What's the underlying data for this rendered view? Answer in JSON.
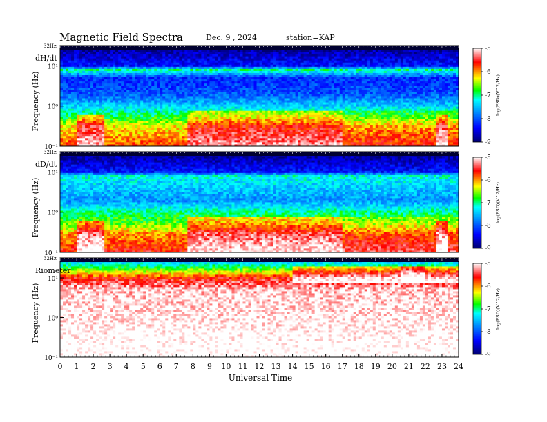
{
  "header": {
    "title": "Magnetic  Field  Spectra",
    "date": "Dec. 9  , 2024",
    "station": "station=KAP"
  },
  "chart_data": [
    {
      "type": "heatmap",
      "panel_label": "dH/dt",
      "ylabel": "Frequency  (Hz)",
      "top_label": "32Hz",
      "ytick_labels": [
        "10¹",
        "10⁰",
        "10⁻¹"
      ],
      "yscale": "log",
      "ylim": [
        0.1,
        32
      ],
      "xlim": [
        0,
        24
      ],
      "colorbar": {
        "label": "log(PSD)(V^2/Hz)",
        "ticks": [
          "-5",
          "-6",
          "-7",
          "-8",
          "-9"
        ],
        "range": [
          -9,
          -5
        ]
      },
      "description_rows": [
        {
          "freq_hz": 32,
          "log_psd": -8.9
        },
        {
          "freq_hz": 10,
          "log_psd": -8.3
        },
        {
          "freq_hz": 8,
          "log_psd": -7.0
        },
        {
          "freq_hz": 5,
          "log_psd": -8.2
        },
        {
          "freq_hz": 2,
          "log_psd": -8.0
        },
        {
          "freq_hz": 1,
          "log_psd": -7.4
        },
        {
          "freq_hz": 0.5,
          "log_psd": -6.8
        },
        {
          "freq_hz": 0.3,
          "log_psd": -6.2
        },
        {
          "freq_hz": 0.1,
          "log_psd": -5.8
        }
      ]
    },
    {
      "type": "heatmap",
      "panel_label": "dD/dt",
      "ylabel": "Frequency  (Hz)",
      "top_label": "32Hz",
      "ytick_labels": [
        "10¹",
        "10⁰",
        "10⁻¹"
      ],
      "yscale": "log",
      "ylim": [
        0.1,
        32
      ],
      "xlim": [
        0,
        24
      ],
      "colorbar": {
        "label": "log(PSD)(V^2/Hz)",
        "ticks": [
          "-5",
          "-6",
          "-7",
          "-8",
          "-9"
        ],
        "range": [
          -9,
          -5
        ]
      },
      "description_rows": [
        {
          "freq_hz": 32,
          "log_psd": -8.9
        },
        {
          "freq_hz": 10,
          "log_psd": -8.3
        },
        {
          "freq_hz": 8,
          "log_psd": -7.2
        },
        {
          "freq_hz": 2,
          "log_psd": -7.7
        },
        {
          "freq_hz": 1,
          "log_psd": -7.0
        },
        {
          "freq_hz": 0.5,
          "log_psd": -6.6
        },
        {
          "freq_hz": 0.3,
          "log_psd": -6.0
        },
        {
          "freq_hz": 0.1,
          "log_psd": -5.6
        }
      ]
    },
    {
      "type": "heatmap",
      "panel_label": "Riometer",
      "ylabel": "Frequency  (Hz)",
      "top_label": "32Hz",
      "ytick_labels": [
        "10¹",
        "10⁰",
        "10⁻¹"
      ],
      "yscale": "log",
      "ylim": [
        0.1,
        32
      ],
      "xlim": [
        0,
        24
      ],
      "colorbar": {
        "label": "log(PSD)(V^2/Hz)",
        "ticks": [
          "-5",
          "-6",
          "-7",
          "-8",
          "-9"
        ],
        "range": [
          -9,
          -5
        ]
      },
      "description_rows": [
        {
          "freq_hz": 32,
          "log_psd": -7.8
        },
        {
          "freq_hz": 20,
          "log_psd": -7.0
        },
        {
          "freq_hz": 14,
          "log_psd": -6.3
        },
        {
          "freq_hz": 10,
          "log_psd": -5.6
        },
        {
          "freq_hz": 5,
          "log_psd": -5.1
        },
        {
          "freq_hz": 0.1,
          "log_psd": -4.8
        }
      ]
    }
  ],
  "xaxis": {
    "label": "Universal  Time",
    "ticks": [
      0,
      1,
      2,
      3,
      4,
      5,
      6,
      7,
      8,
      9,
      10,
      11,
      12,
      13,
      14,
      15,
      16,
      17,
      18,
      19,
      20,
      21,
      22,
      23,
      24
    ]
  },
  "colors": {
    "colormap": [
      "#000080",
      "#0000ff",
      "#0080ff",
      "#00ffff",
      "#00ff00",
      "#ffff00",
      "#ff0000",
      "#ffffff"
    ]
  }
}
